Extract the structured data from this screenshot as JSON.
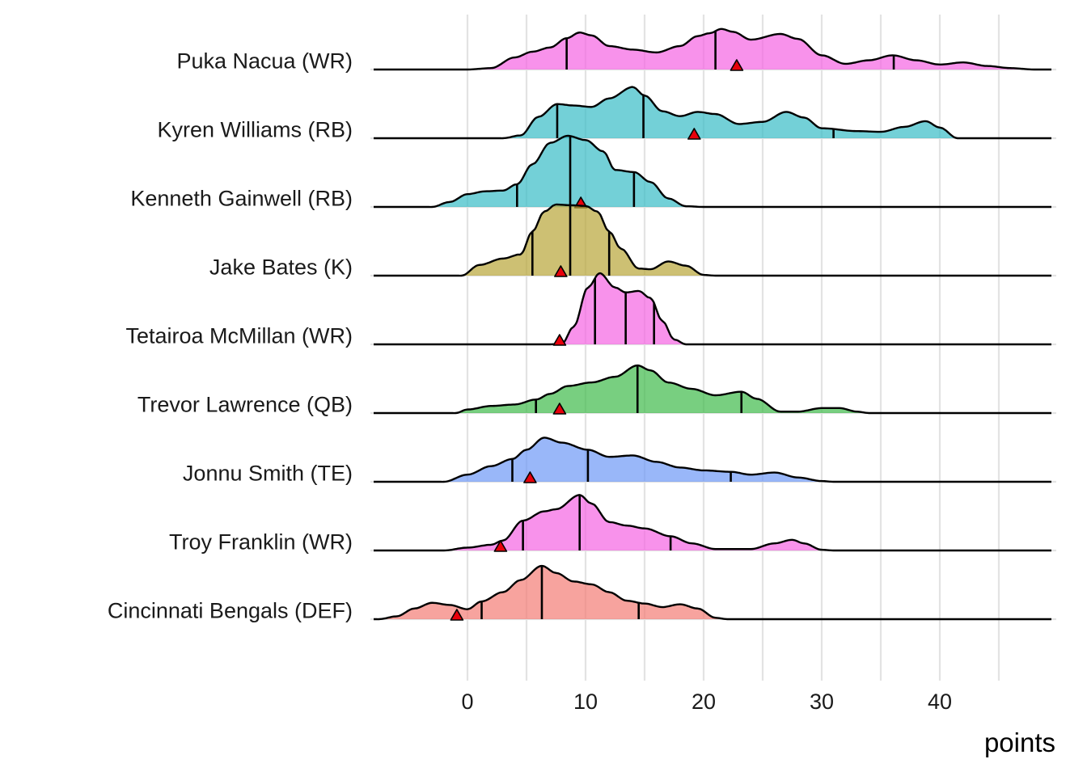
{
  "chart_data": {
    "type": "ridgeline",
    "title": "",
    "xlabel": "points",
    "ylabel": "",
    "xlim": [
      -8,
      49.5
    ],
    "x_ticks": [
      0,
      10,
      20,
      30,
      40
    ],
    "x_tick_labels": [
      "0",
      "10",
      "20",
      "30",
      "40"
    ],
    "grid": "vertical major",
    "legend": "none",
    "marker_color": "#e8000b",
    "series": [
      {
        "name": "Puka Nacua (WR)",
        "color": "#f564e3",
        "quantiles": [
          8.4,
          21.0,
          36.1
        ],
        "marker": 22.8,
        "density": [
          [
            -8,
            0
          ],
          [
            0,
            0
          ],
          [
            2,
            0.02
          ],
          [
            4,
            0.17
          ],
          [
            5.5,
            0.25
          ],
          [
            7,
            0.31
          ],
          [
            8.4,
            0.44
          ],
          [
            9.5,
            0.52
          ],
          [
            10.5,
            0.48
          ],
          [
            12,
            0.33
          ],
          [
            14,
            0.28
          ],
          [
            16,
            0.24
          ],
          [
            18,
            0.33
          ],
          [
            19.5,
            0.47
          ],
          [
            20.5,
            0.51
          ],
          [
            21.5,
            0.57
          ],
          [
            22.5,
            0.53
          ],
          [
            24,
            0.42
          ],
          [
            26.5,
            0.5
          ],
          [
            28,
            0.43
          ],
          [
            30,
            0.2
          ],
          [
            32,
            0.08
          ],
          [
            34,
            0.13
          ],
          [
            36,
            0.2
          ],
          [
            38,
            0.13
          ],
          [
            40,
            0.07
          ],
          [
            42,
            0.1
          ],
          [
            44,
            0.05
          ],
          [
            46,
            0.02
          ],
          [
            48,
            0
          ],
          [
            49.5,
            0
          ]
        ]
      },
      {
        "name": "Kyren Williams (RB)",
        "color": "#37bcc6",
        "quantiles": [
          7.6,
          14.9,
          31.0
        ],
        "marker": 19.2,
        "density": [
          [
            -8,
            0
          ],
          [
            3,
            0
          ],
          [
            4.5,
            0.04
          ],
          [
            6,
            0.3
          ],
          [
            7.6,
            0.48
          ],
          [
            9,
            0.46
          ],
          [
            10.5,
            0.44
          ],
          [
            12,
            0.56
          ],
          [
            14,
            0.72
          ],
          [
            15,
            0.6
          ],
          [
            16.5,
            0.38
          ],
          [
            18,
            0.31
          ],
          [
            19.5,
            0.37
          ],
          [
            21,
            0.34
          ],
          [
            23,
            0.2
          ],
          [
            25,
            0.23
          ],
          [
            27,
            0.37
          ],
          [
            28.5,
            0.29
          ],
          [
            30,
            0.14
          ],
          [
            33,
            0.1
          ],
          [
            35,
            0.09
          ],
          [
            37,
            0.16
          ],
          [
            38.8,
            0.24
          ],
          [
            40,
            0.15
          ],
          [
            41.5,
            0
          ],
          [
            49.5,
            0
          ]
        ]
      },
      {
        "name": "Kenneth Gainwell (RB)",
        "color": "#37bcc6",
        "quantiles": [
          4.2,
          8.7,
          14.1
        ],
        "marker": 9.6,
        "density": [
          [
            -8,
            0
          ],
          [
            -3,
            0
          ],
          [
            -1.5,
            0.07
          ],
          [
            0,
            0.18
          ],
          [
            1.5,
            0.22
          ],
          [
            3,
            0.23
          ],
          [
            4.2,
            0.32
          ],
          [
            5.5,
            0.6
          ],
          [
            7,
            0.9
          ],
          [
            8.5,
            1.0
          ],
          [
            10,
            0.94
          ],
          [
            11.5,
            0.78
          ],
          [
            12.5,
            0.52
          ],
          [
            14.1,
            0.49
          ],
          [
            15.5,
            0.35
          ],
          [
            17,
            0.12
          ],
          [
            18.5,
            0.01
          ],
          [
            20,
            0
          ],
          [
            49.5,
            0
          ]
        ]
      },
      {
        "name": "Jake Bates (K)",
        "color": "#b8a537",
        "quantiles": [
          5.5,
          8.7,
          12.0
        ],
        "marker": 7.9,
        "density": [
          [
            -8,
            0
          ],
          [
            -0.5,
            0
          ],
          [
            1,
            0.15
          ],
          [
            3,
            0.24
          ],
          [
            4.5,
            0.3
          ],
          [
            5.5,
            0.62
          ],
          [
            6.5,
            0.9
          ],
          [
            7.5,
            1.0
          ],
          [
            8.7,
            0.99
          ],
          [
            10,
            0.98
          ],
          [
            11,
            0.9
          ],
          [
            12,
            0.62
          ],
          [
            13,
            0.38
          ],
          [
            14.5,
            0.1
          ],
          [
            15.5,
            0.09
          ],
          [
            17,
            0.2
          ],
          [
            18.5,
            0.14
          ],
          [
            20,
            0.01
          ],
          [
            21,
            0
          ],
          [
            49.5,
            0
          ]
        ]
      },
      {
        "name": "Tetairoa McMillan (WR)",
        "color": "#f564e3",
        "quantiles": [
          10.8,
          13.4,
          15.8
        ],
        "marker": 7.8,
        "density": [
          [
            -8,
            0
          ],
          [
            7,
            0
          ],
          [
            8,
            0.01
          ],
          [
            9,
            0.25
          ],
          [
            10.2,
            0.8
          ],
          [
            11.2,
            1.0
          ],
          [
            12.5,
            0.8
          ],
          [
            13.4,
            0.73
          ],
          [
            14.5,
            0.75
          ],
          [
            15.5,
            0.65
          ],
          [
            16.5,
            0.33
          ],
          [
            17.5,
            0.07
          ],
          [
            18.5,
            0
          ],
          [
            49.5,
            0
          ]
        ]
      },
      {
        "name": "Trevor Lawrence (QB)",
        "color": "#3fbb4a",
        "quantiles": [
          5.8,
          14.4,
          23.2
        ],
        "marker": 7.8,
        "density": [
          [
            -8,
            0
          ],
          [
            -1,
            0
          ],
          [
            0,
            0.05
          ],
          [
            2,
            0.1
          ],
          [
            4,
            0.12
          ],
          [
            5.8,
            0.19
          ],
          [
            7,
            0.27
          ],
          [
            8.5,
            0.38
          ],
          [
            10.5,
            0.43
          ],
          [
            12.5,
            0.51
          ],
          [
            14.4,
            0.67
          ],
          [
            15.5,
            0.6
          ],
          [
            17,
            0.43
          ],
          [
            19,
            0.34
          ],
          [
            21,
            0.25
          ],
          [
            23.2,
            0.3
          ],
          [
            24.5,
            0.2
          ],
          [
            26.5,
            0.02
          ],
          [
            28,
            0.02
          ],
          [
            30,
            0.07
          ],
          [
            31.5,
            0.07
          ],
          [
            33,
            0.02
          ],
          [
            34,
            0
          ],
          [
            49.5,
            0
          ]
        ]
      },
      {
        "name": "Jonnu Smith (TE)",
        "color": "#6d98f6",
        "quantiles": [
          3.8,
          10.2,
          22.3
        ],
        "marker": 5.3,
        "density": [
          [
            -8,
            0
          ],
          [
            -2,
            0
          ],
          [
            0,
            0.1
          ],
          [
            2,
            0.22
          ],
          [
            3.8,
            0.32
          ],
          [
            5,
            0.45
          ],
          [
            6.5,
            0.62
          ],
          [
            8,
            0.55
          ],
          [
            10.2,
            0.45
          ],
          [
            12,
            0.35
          ],
          [
            14,
            0.37
          ],
          [
            16,
            0.28
          ],
          [
            18,
            0.2
          ],
          [
            20,
            0.16
          ],
          [
            22.3,
            0.14
          ],
          [
            24,
            0.1
          ],
          [
            26,
            0.13
          ],
          [
            28,
            0.06
          ],
          [
            30,
            0.01
          ],
          [
            31,
            0
          ],
          [
            49.5,
            0
          ]
        ]
      },
      {
        "name": "Troy Franklin (WR)",
        "color": "#f564e3",
        "quantiles": [
          4.7,
          9.5,
          17.2
        ],
        "marker": 2.8,
        "density": [
          [
            -8,
            0
          ],
          [
            -2,
            0
          ],
          [
            0,
            0.04
          ],
          [
            2,
            0.08
          ],
          [
            3,
            0.14
          ],
          [
            4.7,
            0.42
          ],
          [
            6.5,
            0.55
          ],
          [
            7.5,
            0.58
          ],
          [
            9.5,
            0.78
          ],
          [
            10.5,
            0.66
          ],
          [
            12,
            0.4
          ],
          [
            13.5,
            0.35
          ],
          [
            15,
            0.31
          ],
          [
            17.2,
            0.2
          ],
          [
            19,
            0.1
          ],
          [
            21,
            0.02
          ],
          [
            24,
            0.02
          ],
          [
            26,
            0.1
          ],
          [
            27.5,
            0.15
          ],
          [
            28.5,
            0.1
          ],
          [
            30,
            0.01
          ],
          [
            31,
            0
          ],
          [
            49.5,
            0
          ]
        ]
      },
      {
        "name": "Cincinnati Bengals (DEF)",
        "color": "#f37c75",
        "quantiles": [
          1.2,
          6.3,
          14.5
        ],
        "marker": -0.9,
        "density": [
          [
            -8,
            0
          ],
          [
            -7.5,
            0
          ],
          [
            -6,
            0.04
          ],
          [
            -4.5,
            0.15
          ],
          [
            -3,
            0.23
          ],
          [
            -1.5,
            0.2
          ],
          [
            0,
            0.14
          ],
          [
            1.2,
            0.25
          ],
          [
            3,
            0.38
          ],
          [
            4.5,
            0.55
          ],
          [
            6.3,
            0.75
          ],
          [
            7.5,
            0.65
          ],
          [
            9,
            0.53
          ],
          [
            10.5,
            0.49
          ],
          [
            12,
            0.38
          ],
          [
            13.5,
            0.26
          ],
          [
            15,
            0.22
          ],
          [
            16.5,
            0.17
          ],
          [
            18,
            0.21
          ],
          [
            19.5,
            0.15
          ],
          [
            21,
            0.02
          ],
          [
            22,
            0
          ],
          [
            49.5,
            0
          ]
        ]
      }
    ]
  }
}
